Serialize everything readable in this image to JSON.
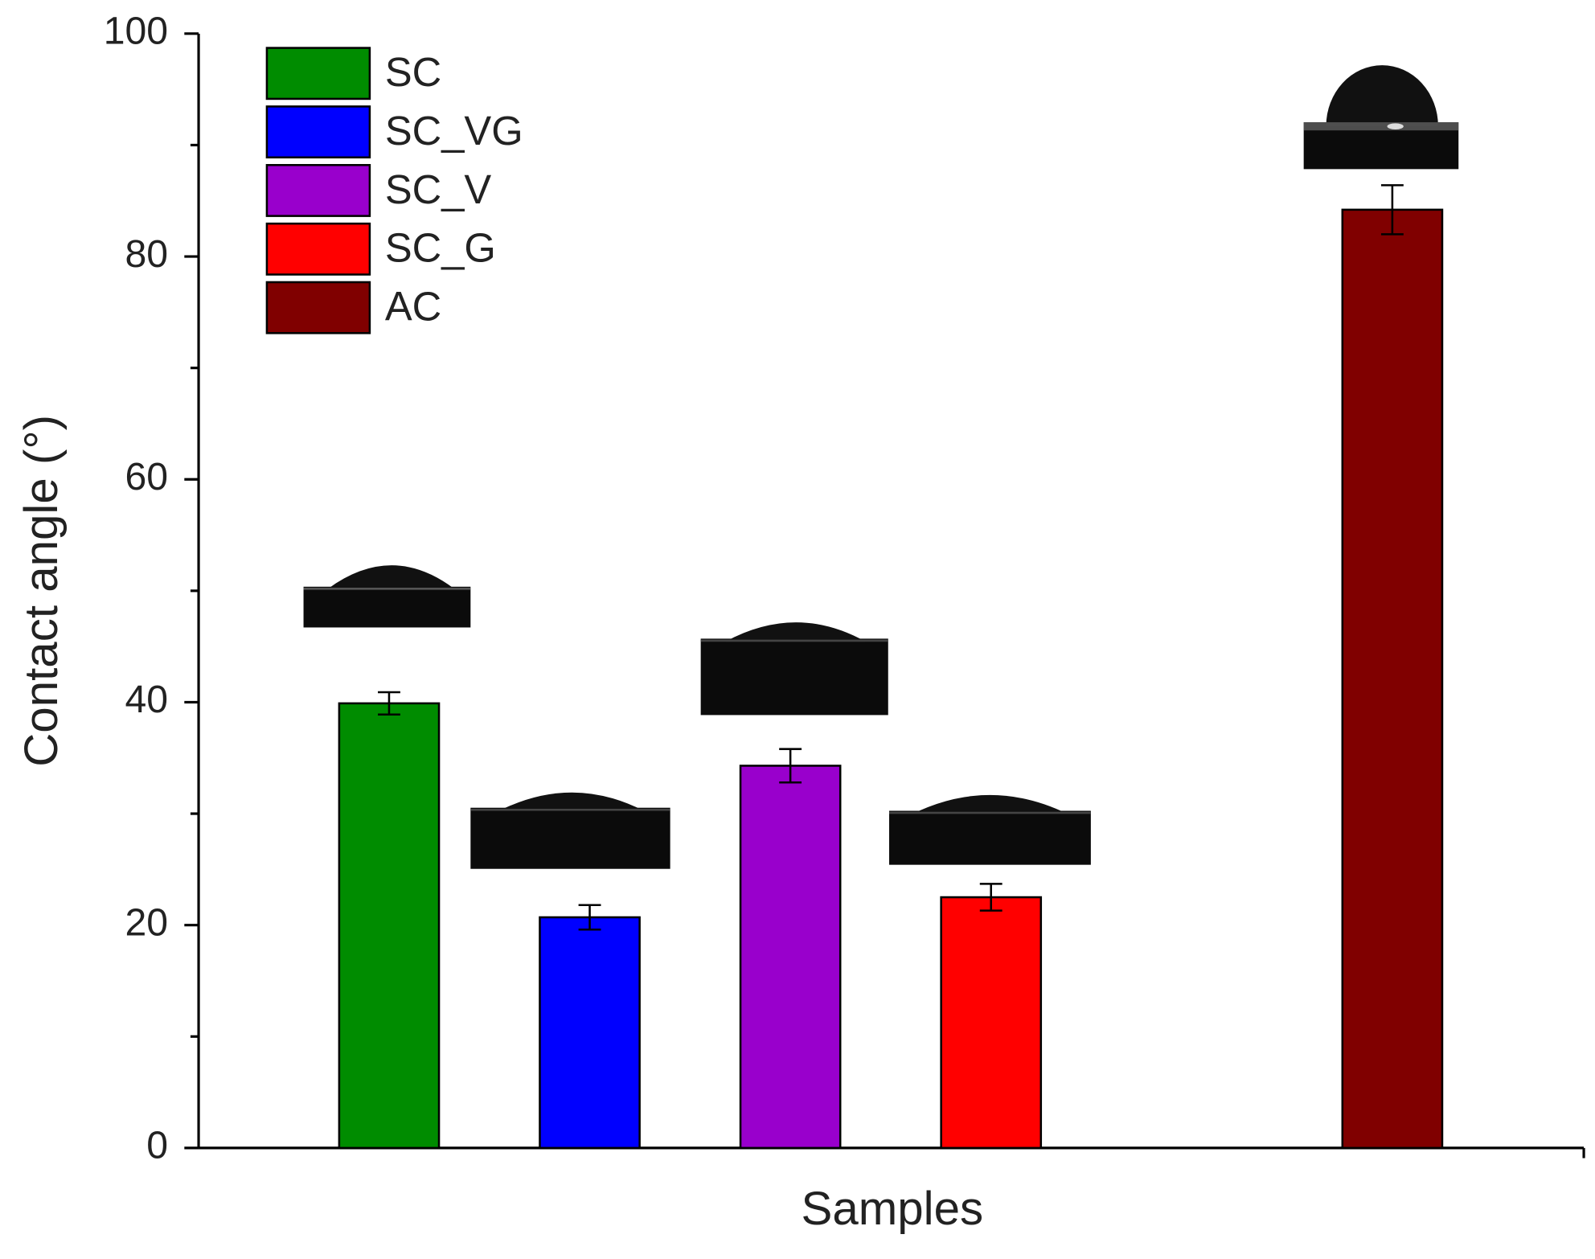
{
  "chart_data": {
    "type": "bar",
    "x_label": "Samples",
    "y_label": "Contact angle (°)",
    "ylim": [
      0,
      100
    ],
    "yticks": [
      0,
      20,
      40,
      60,
      80,
      100
    ],
    "yminorticks": [
      10,
      30,
      50,
      70,
      90
    ],
    "series": [
      {
        "name": "SC",
        "color": "#008c00",
        "values": [
          39.9
        ],
        "errors": [
          1.0
        ]
      },
      {
        "name": "SC_VG",
        "color": "#0000ff",
        "values": [
          20.7
        ],
        "errors": [
          1.1
        ]
      },
      {
        "name": "SC_V",
        "color": "#9900cc",
        "values": [
          34.3
        ],
        "errors": [
          1.5
        ]
      },
      {
        "name": "SC_G",
        "color": "#ff0000",
        "values": [
          22.5
        ],
        "errors": [
          1.2
        ]
      },
      {
        "name": "AC",
        "color": "#800000",
        "values": [
          84.2
        ],
        "errors": [
          2.2
        ]
      }
    ]
  }
}
